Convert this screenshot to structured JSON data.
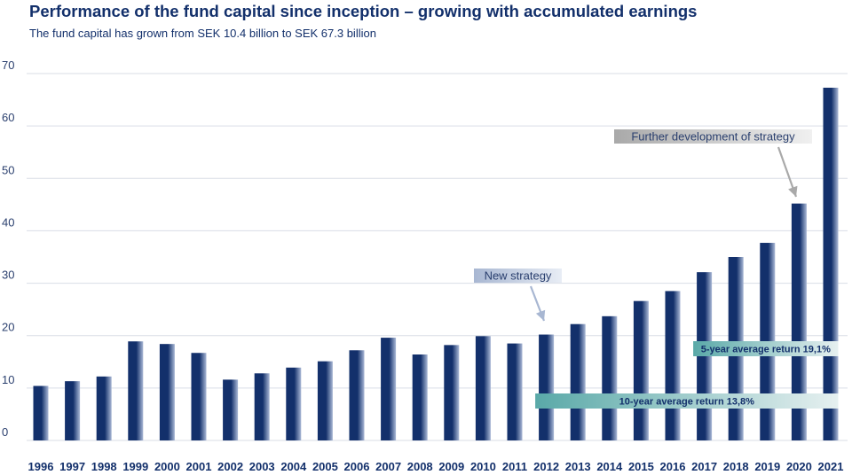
{
  "header": {
    "title": "Performance of the fund capital since inception – growing with accumulated earnings",
    "subtitle": "The fund capital has grown from SEK 10.4 billion to SEK 67.3 billion"
  },
  "colors": {
    "bar_dark": "#13306b",
    "bar_light": "#a9b8d6",
    "grid": "#d9dde6",
    "band_5yr": "#5aa9a8",
    "band_10yr": "#5aa9a8",
    "label_new_strategy": "#a8b7d2",
    "label_further": "#a9a9a9"
  },
  "chart_data": {
    "type": "bar",
    "title": "Performance of the fund capital since inception – growing with accumulated earnings",
    "subtitle": "The fund capital has grown from SEK 10.4 billion to SEK 67.3 billion",
    "xlabel": "",
    "ylabel": "",
    "ylim": [
      0,
      70
    ],
    "yticks": [
      0,
      10,
      20,
      30,
      40,
      50,
      60,
      70
    ],
    "grid": true,
    "categories": [
      "1996",
      "1997",
      "1998",
      "1999",
      "2000",
      "2001",
      "2002",
      "2003",
      "2004",
      "2005",
      "2006",
      "2007",
      "2008",
      "2009",
      "2010",
      "2011",
      "2012",
      "2013",
      "2014",
      "2015",
      "2016",
      "2017",
      "2018",
      "2019",
      "2020",
      "2021"
    ],
    "values": [
      10.4,
      11.3,
      12.2,
      18.9,
      18.4,
      16.7,
      11.6,
      12.8,
      13.9,
      15.1,
      17.2,
      19.6,
      16.4,
      18.2,
      19.9,
      18.5,
      20.2,
      22.2,
      23.7,
      26.6,
      28.5,
      32.1,
      35.0,
      37.7,
      45.2,
      67.3
    ],
    "annotations": [
      {
        "text": "New strategy",
        "arrow_to": "2012"
      },
      {
        "text": "Further development of strategy",
        "arrow_to": "2020"
      }
    ],
    "bands": [
      {
        "text": "5-year average return 19,1%",
        "from": "2017",
        "to": "2021"
      },
      {
        "text": "10-year average return 13,8%",
        "from": "2012",
        "to": "2021"
      }
    ]
  }
}
